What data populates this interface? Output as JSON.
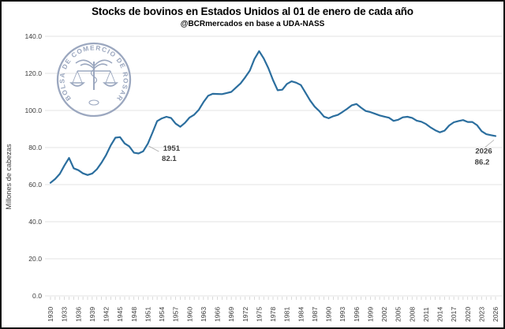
{
  "chart_data": {
    "type": "line",
    "title": "Stocks de bovinos en Estados Unidos al 01 de enero de cada año",
    "subtitle": "@BCRmercados en base a UDA-NASS",
    "ylabel": "Millones de cabezas",
    "xlabel": "",
    "ylim": [
      0,
      140
    ],
    "y_ticks": [
      0,
      20,
      40,
      60,
      80,
      100,
      120,
      140
    ],
    "y_tick_labels": [
      "0.0",
      "20.0",
      "40.0",
      "60.0",
      "80.0",
      "100.0",
      "120.0",
      "140.0"
    ],
    "x_range": [
      1930,
      2026
    ],
    "x_step": 1,
    "x_tick_labels": [
      1930,
      1933,
      1936,
      1939,
      1942,
      1945,
      1948,
      1951,
      1954,
      1957,
      1960,
      1963,
      1966,
      1969,
      1972,
      1975,
      1978,
      1981,
      1984,
      1987,
      1990,
      1993,
      1996,
      1999,
      2002,
      2005,
      2008,
      2011,
      2014,
      2017,
      2020,
      2023,
      2026
    ],
    "grid": "horizontal-only",
    "legend": "none",
    "line_color": "#2b6e9e",
    "grid_color": "#e3e3e3",
    "tick_color": "#c9c9c9",
    "leader_color": "#b5b5b5",
    "series": [
      {
        "name": "Stocks de bovinos (millones de cabezas)",
        "values": [
          61.0,
          63.0,
          65.8,
          70.3,
          74.4,
          68.8,
          67.8,
          66.1,
          65.2,
          66.0,
          68.3,
          71.8,
          76.0,
          81.2,
          85.3,
          85.6,
          82.2,
          80.6,
          77.2,
          76.8,
          78.0,
          82.1,
          88.1,
          94.2,
          95.7,
          96.6,
          95.9,
          92.9,
          91.2,
          93.3,
          96.2,
          97.7,
          100.4,
          104.5,
          107.9,
          109.0,
          108.9,
          108.8,
          109.4,
          110.0,
          112.3,
          114.6,
          117.9,
          121.5,
          127.8,
          132.0,
          128.0,
          122.8,
          116.4,
          110.9,
          111.2,
          114.3,
          115.7,
          115.0,
          113.7,
          109.6,
          105.4,
          102.0,
          99.6,
          96.7,
          95.8,
          96.9,
          97.6,
          99.2,
          100.9,
          102.8,
          103.5,
          101.5,
          99.7,
          99.1,
          98.2,
          97.3,
          96.7,
          96.1,
          94.4,
          95.0,
          96.3,
          96.6,
          96.0,
          94.5,
          93.9,
          92.7,
          90.8,
          89.3,
          88.2,
          89.1,
          91.9,
          93.6,
          94.3,
          94.8,
          93.8,
          93.8,
          92.1,
          88.8,
          87.2,
          86.7,
          86.2
        ]
      }
    ],
    "annotations": [
      {
        "year": 1951,
        "value": 82.1,
        "label_lines": [
          "1951",
          "82.1"
        ],
        "placement": "below-right"
      },
      {
        "year": 2026,
        "value": 86.2,
        "label_lines": [
          "2026",
          "86.2"
        ],
        "placement": "below-left"
      }
    ]
  },
  "logo": {
    "text": "BOLSA DE COMERCIO DE ROSARIO"
  }
}
